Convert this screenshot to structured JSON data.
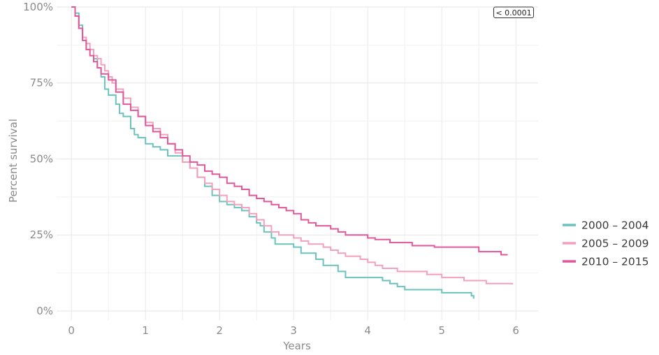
{
  "chart_data": {
    "type": "line",
    "subtype": "step",
    "title": "",
    "xlabel": "Years",
    "ylabel": "Percent survival",
    "xlim": [
      -0.2,
      6.3
    ],
    "ylim": [
      -3,
      100
    ],
    "x_ticks": [
      0,
      1,
      2,
      3,
      4,
      5,
      6
    ],
    "x_tick_labels": [
      "0",
      "1",
      "2",
      "3",
      "4",
      "5",
      "6"
    ],
    "y_ticks": [
      0,
      25,
      50,
      75,
      100
    ],
    "y_tick_labels": [
      "0%",
      "25%",
      "50%",
      "75%",
      "100%"
    ],
    "grid": true,
    "legend_position": "right",
    "annotation": "< 0.0001",
    "series": [
      {
        "name": "2000 – 2004",
        "color": "#6cc2bd",
        "points": [
          [
            0,
            100
          ],
          [
            0.05,
            98
          ],
          [
            0.1,
            94
          ],
          [
            0.15,
            90
          ],
          [
            0.2,
            86
          ],
          [
            0.3,
            83
          ],
          [
            0.35,
            80
          ],
          [
            0.4,
            77
          ],
          [
            0.45,
            73
          ],
          [
            0.5,
            71
          ],
          [
            0.6,
            68
          ],
          [
            0.65,
            65
          ],
          [
            0.7,
            64
          ],
          [
            0.8,
            60
          ],
          [
            0.85,
            58
          ],
          [
            0.9,
            57
          ],
          [
            1.0,
            55
          ],
          [
            1.1,
            54
          ],
          [
            1.2,
            53
          ],
          [
            1.3,
            51
          ],
          [
            1.5,
            49
          ],
          [
            1.6,
            47
          ],
          [
            1.7,
            44
          ],
          [
            1.8,
            41
          ],
          [
            1.9,
            38
          ],
          [
            2.0,
            36
          ],
          [
            2.1,
            35
          ],
          [
            2.2,
            34
          ],
          [
            2.3,
            33
          ],
          [
            2.4,
            31
          ],
          [
            2.5,
            29
          ],
          [
            2.55,
            28
          ],
          [
            2.6,
            26
          ],
          [
            2.7,
            24
          ],
          [
            2.75,
            22
          ],
          [
            3.0,
            21
          ],
          [
            3.1,
            19
          ],
          [
            3.3,
            17
          ],
          [
            3.4,
            15
          ],
          [
            3.6,
            13
          ],
          [
            3.7,
            11
          ],
          [
            4.2,
            10
          ],
          [
            4.3,
            9
          ],
          [
            4.4,
            8
          ],
          [
            4.5,
            7
          ],
          [
            5.0,
            6
          ],
          [
            5.4,
            5
          ],
          [
            5.43,
            4
          ]
        ]
      },
      {
        "name": "2005 – 2009",
        "color": "#f3a0bc",
        "points": [
          [
            0,
            100
          ],
          [
            0.05,
            97
          ],
          [
            0.1,
            93
          ],
          [
            0.15,
            90
          ],
          [
            0.2,
            88
          ],
          [
            0.25,
            86
          ],
          [
            0.3,
            84
          ],
          [
            0.35,
            83
          ],
          [
            0.4,
            81
          ],
          [
            0.45,
            79
          ],
          [
            0.5,
            77
          ],
          [
            0.55,
            75
          ],
          [
            0.6,
            73
          ],
          [
            0.7,
            70
          ],
          [
            0.8,
            67
          ],
          [
            0.9,
            64
          ],
          [
            1.0,
            62
          ],
          [
            1.1,
            60
          ],
          [
            1.2,
            58
          ],
          [
            1.3,
            55
          ],
          [
            1.4,
            52
          ],
          [
            1.5,
            49
          ],
          [
            1.6,
            47
          ],
          [
            1.7,
            44
          ],
          [
            1.8,
            42
          ],
          [
            1.9,
            40
          ],
          [
            2.0,
            38
          ],
          [
            2.1,
            36
          ],
          [
            2.2,
            35
          ],
          [
            2.3,
            34
          ],
          [
            2.4,
            32
          ],
          [
            2.5,
            30
          ],
          [
            2.6,
            28
          ],
          [
            2.7,
            26
          ],
          [
            2.8,
            25
          ],
          [
            3.0,
            24
          ],
          [
            3.1,
            23
          ],
          [
            3.2,
            22
          ],
          [
            3.4,
            21
          ],
          [
            3.5,
            20
          ],
          [
            3.6,
            19
          ],
          [
            3.7,
            18
          ],
          [
            3.9,
            17
          ],
          [
            4.0,
            16
          ],
          [
            4.1,
            15
          ],
          [
            4.2,
            14
          ],
          [
            4.4,
            13
          ],
          [
            4.8,
            12
          ],
          [
            5.0,
            11
          ],
          [
            5.3,
            10
          ],
          [
            5.6,
            9
          ],
          [
            5.95,
            8.7
          ]
        ]
      },
      {
        "name": "2010 – 2015",
        "color": "#e2579a",
        "points": [
          [
            0,
            100
          ],
          [
            0.05,
            97
          ],
          [
            0.1,
            93
          ],
          [
            0.15,
            89
          ],
          [
            0.2,
            86
          ],
          [
            0.25,
            84
          ],
          [
            0.3,
            82
          ],
          [
            0.35,
            80
          ],
          [
            0.4,
            78
          ],
          [
            0.5,
            76
          ],
          [
            0.6,
            72
          ],
          [
            0.7,
            68
          ],
          [
            0.8,
            66
          ],
          [
            0.9,
            64
          ],
          [
            1.0,
            61
          ],
          [
            1.1,
            59
          ],
          [
            1.2,
            57
          ],
          [
            1.3,
            55
          ],
          [
            1.4,
            53
          ],
          [
            1.5,
            51
          ],
          [
            1.6,
            49
          ],
          [
            1.7,
            48
          ],
          [
            1.8,
            46
          ],
          [
            1.9,
            45
          ],
          [
            2.0,
            44
          ],
          [
            2.1,
            42
          ],
          [
            2.2,
            41
          ],
          [
            2.3,
            40
          ],
          [
            2.4,
            38
          ],
          [
            2.5,
            37
          ],
          [
            2.6,
            36
          ],
          [
            2.7,
            35
          ],
          [
            2.8,
            34
          ],
          [
            2.9,
            33
          ],
          [
            3.0,
            32
          ],
          [
            3.1,
            30
          ],
          [
            3.2,
            29
          ],
          [
            3.3,
            28
          ],
          [
            3.5,
            27
          ],
          [
            3.6,
            26
          ],
          [
            3.7,
            25
          ],
          [
            4.0,
            24
          ],
          [
            4.1,
            23.5
          ],
          [
            4.3,
            22.5
          ],
          [
            4.6,
            21.5
          ],
          [
            4.9,
            21
          ],
          [
            5.5,
            19.5
          ],
          [
            5.8,
            18.5
          ],
          [
            5.88,
            18.3
          ]
        ]
      }
    ]
  }
}
